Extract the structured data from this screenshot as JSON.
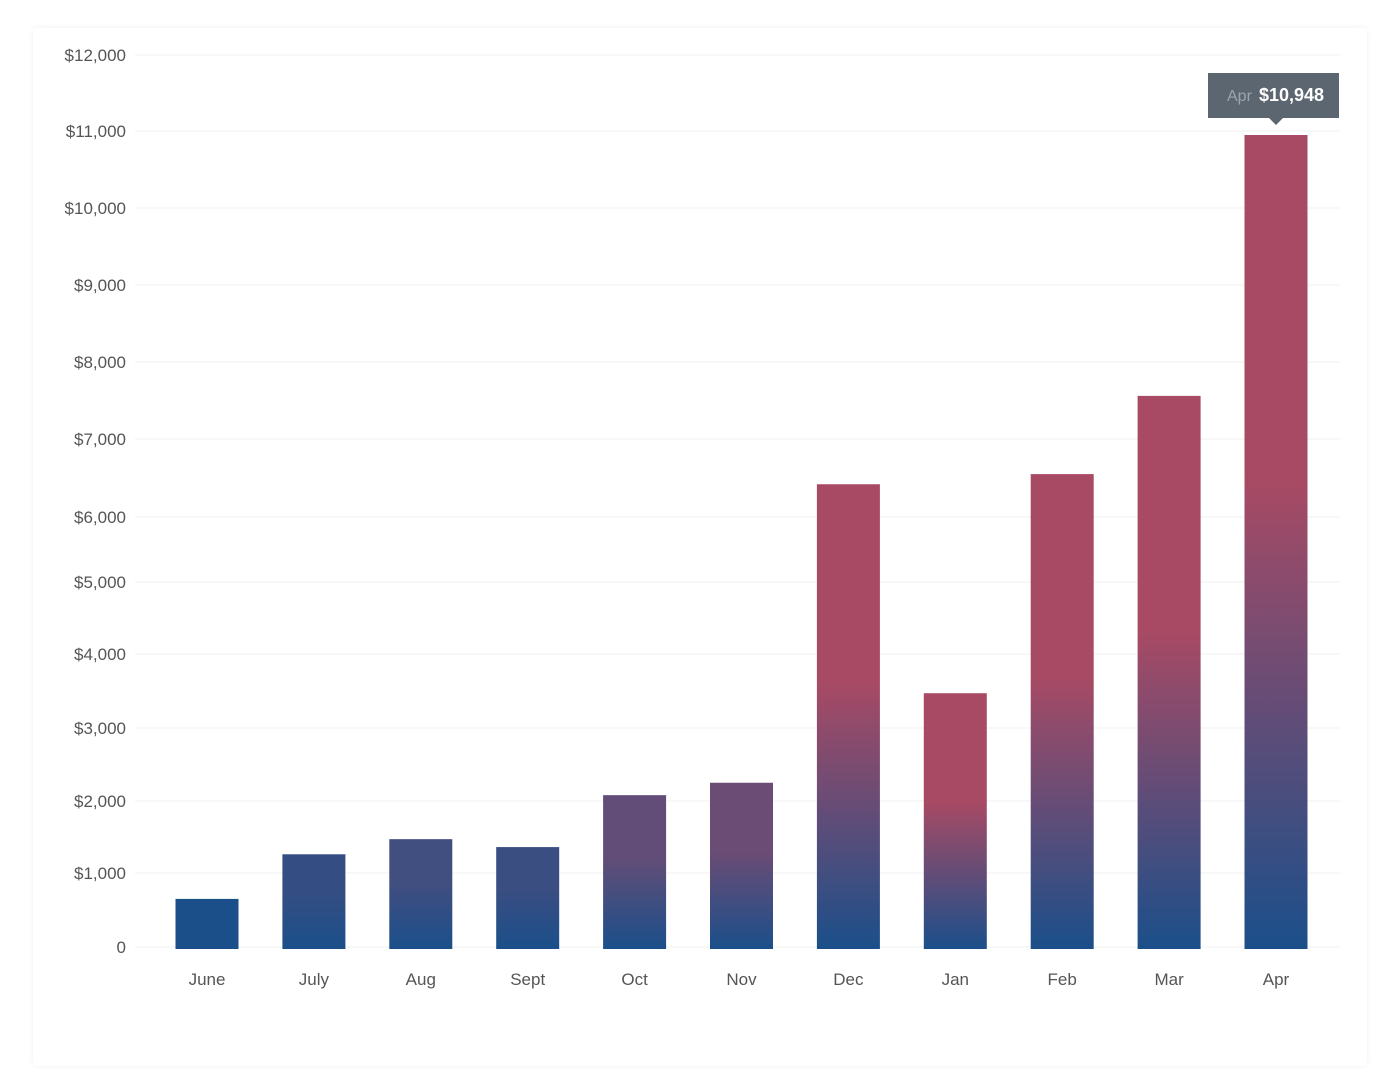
{
  "chart_data": {
    "type": "bar",
    "title": "",
    "xlabel": "",
    "ylabel": "",
    "categories": [
      "June",
      "July",
      "Aug",
      "Sept",
      "Oct",
      "Nov",
      "Dec",
      "Jan",
      "Feb",
      "Mar",
      "Apr"
    ],
    "values": [
      650,
      1260,
      1470,
      1360,
      2080,
      2250,
      6420,
      3470,
      6550,
      7560,
      10948
    ],
    "ylim": [
      0,
      12000
    ],
    "y_ticks": [
      "0",
      "$1,000",
      "$2,000",
      "$3,000",
      "$4,000",
      "$5,000",
      "$6,000",
      "$7,000",
      "$8,000",
      "$9,000",
      "$10,000",
      "$11,000",
      "$12,000"
    ],
    "grid": true,
    "tooltip": {
      "category": "Apr",
      "value": "$10,948"
    },
    "colors": {
      "low": "#1b4f8a",
      "high": "#a94a64",
      "tooltip_bg": "#5b6670"
    }
  }
}
